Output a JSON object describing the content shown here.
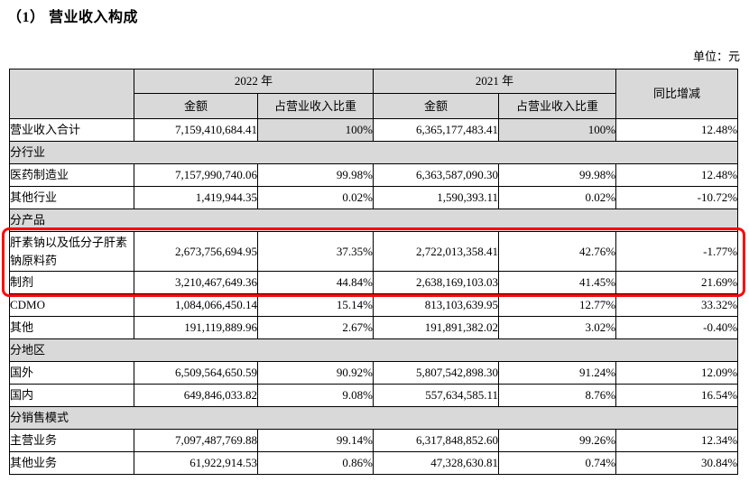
{
  "page": {
    "title": "（1） 营业收入构成",
    "unit_label": "单位：元"
  },
  "colors": {
    "header_bg": "#d9d9d9",
    "border": "#000000",
    "highlight_box": "#fd0808"
  },
  "table": {
    "header": {
      "year_2022": "2022 年",
      "year_2021": "2021 年",
      "yoy": "同比增减",
      "amount_2022": "金额",
      "ratio_2022": "占营业收入比重",
      "amount_2021": "金额",
      "ratio_2021": "占营业收入比重"
    },
    "rows": [
      {
        "type": "data",
        "label": "营业收入合计",
        "amt2022": "7,159,410,684.41",
        "pct2022": "100%",
        "amt2021": "6,365,177,483.41",
        "pct2021": "100%",
        "yoy": "12.48%",
        "pct_shaded": true
      },
      {
        "type": "section",
        "label": "分行业"
      },
      {
        "type": "data",
        "label": "医药制造业",
        "amt2022": "7,157,990,740.06",
        "pct2022": "99.98%",
        "amt2021": "6,363,587,090.30",
        "pct2021": "99.98%",
        "yoy": "12.48%"
      },
      {
        "type": "data",
        "label": "其他行业",
        "amt2022": "1,419,944.35",
        "pct2022": "0.02%",
        "amt2021": "1,590,393.11",
        "pct2021": "0.02%",
        "yoy": "-10.72%"
      },
      {
        "type": "section",
        "label": "分产品"
      },
      {
        "type": "data",
        "label": "肝素钠以及低分子肝素钠原料药",
        "amt2022": "2,673,756,694.95",
        "pct2022": "37.35%",
        "amt2021": "2,722,013,358.41",
        "pct2021": "42.76%",
        "yoy": "-1.77%",
        "tall": true,
        "highlighted": true
      },
      {
        "type": "data",
        "label": "制剂",
        "amt2022": "3,210,467,649.36",
        "pct2022": "44.84%",
        "amt2021": "2,638,169,103.03",
        "pct2021": "41.45%",
        "yoy": "21.69%",
        "highlighted": true
      },
      {
        "type": "data",
        "label": "CDMO",
        "amt2022": "1,084,066,450.14",
        "pct2022": "15.14%",
        "amt2021": "813,103,639.95",
        "pct2021": "12.77%",
        "yoy": "33.32%"
      },
      {
        "type": "data",
        "label": "其他",
        "amt2022": "191,119,889.96",
        "pct2022": "2.67%",
        "amt2021": "191,891,382.02",
        "pct2021": "3.02%",
        "yoy": "-0.40%"
      },
      {
        "type": "section",
        "label": "分地区"
      },
      {
        "type": "data",
        "label": "国外",
        "amt2022": "6,509,564,650.59",
        "pct2022": "90.92%",
        "amt2021": "5,807,542,898.30",
        "pct2021": "91.24%",
        "yoy": "12.09%"
      },
      {
        "type": "data",
        "label": "国内",
        "amt2022": "649,846,033.82",
        "pct2022": "9.08%",
        "amt2021": "557,634,585.11",
        "pct2021": "8.76%",
        "yoy": "16.54%"
      },
      {
        "type": "section",
        "label": "分销售模式"
      },
      {
        "type": "data",
        "label": "主营业务",
        "amt2022": "7,097,487,769.88",
        "pct2022": "99.14%",
        "amt2021": "6,317,848,852.60",
        "pct2021": "99.26%",
        "yoy": "12.34%"
      },
      {
        "type": "data",
        "label": "其他业务",
        "amt2022": "61,922,914.53",
        "pct2022": "0.86%",
        "amt2021": "47,328,630.81",
        "pct2021": "0.74%",
        "yoy": "30.84%"
      }
    ]
  }
}
